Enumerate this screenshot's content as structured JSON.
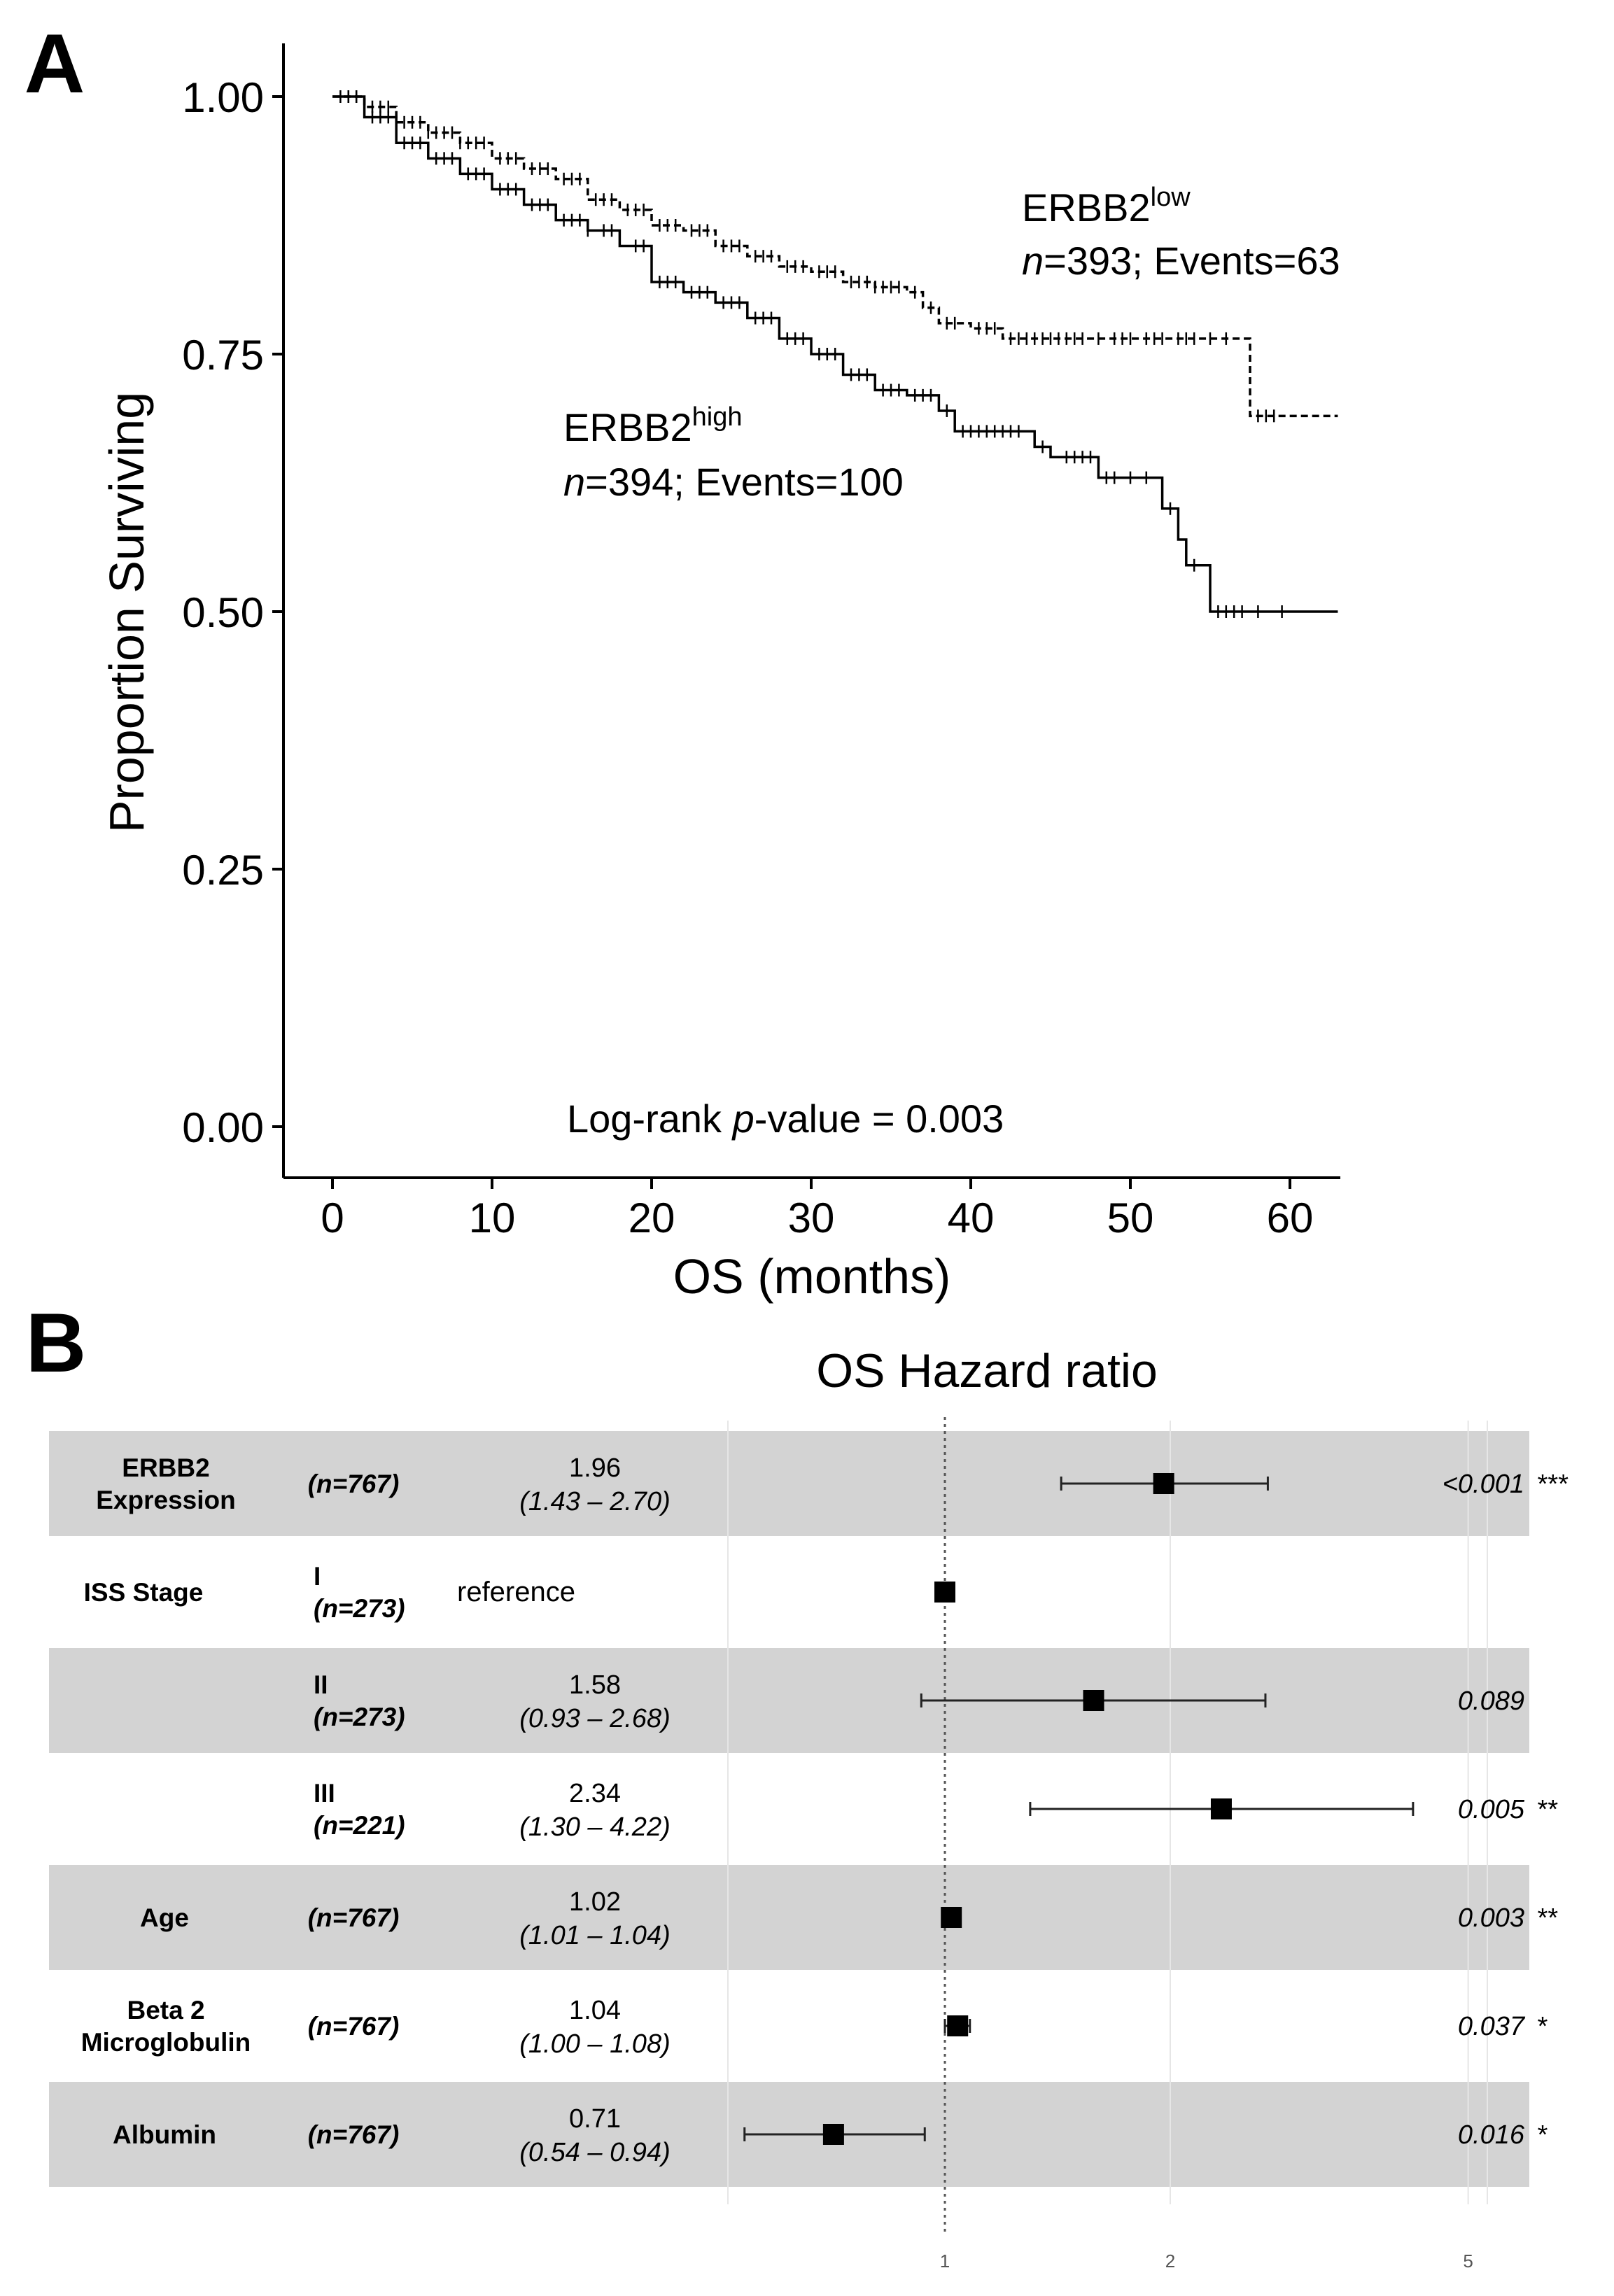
{
  "panel_a": {
    "label": "A",
    "chart_data": {
      "type": "line",
      "title": "",
      "xlabel": "OS (months)",
      "ylabel": "Proportion Surviving",
      "xlim": [
        -2,
        63
      ],
      "ylim": [
        -0.05,
        1.05
      ],
      "x_ticks": [
        0,
        10,
        20,
        30,
        40,
        50,
        60
      ],
      "y_ticks": [
        0.0,
        0.25,
        0.5,
        0.75,
        1.0
      ],
      "y_tick_labels": [
        "0.00",
        "0.25",
        "0.50",
        "0.75",
        "1.00"
      ],
      "grid": false,
      "series": [
        {
          "name": "ERBB2high",
          "line_style": "solid",
          "annotation": {
            "gene": "ERBB2",
            "sup": "high",
            "n_italic": "n",
            "rest": "=394; Events=100"
          },
          "steps": [
            [
              0,
              1.0
            ],
            [
              2,
              0.98
            ],
            [
              4,
              0.955
            ],
            [
              6,
              0.94
            ],
            [
              8,
              0.925
            ],
            [
              10,
              0.91
            ],
            [
              12,
              0.895
            ],
            [
              14,
              0.88
            ],
            [
              16,
              0.87
            ],
            [
              18,
              0.855
            ],
            [
              20,
              0.82
            ],
            [
              22,
              0.81
            ],
            [
              24,
              0.8
            ],
            [
              26,
              0.785
            ],
            [
              28,
              0.765
            ],
            [
              30,
              0.75
            ],
            [
              32,
              0.73
            ],
            [
              34,
              0.715
            ],
            [
              36,
              0.71
            ],
            [
              38,
              0.695
            ],
            [
              39,
              0.675
            ],
            [
              44,
              0.66
            ],
            [
              45,
              0.65
            ],
            [
              48,
              0.63
            ],
            [
              52,
              0.6
            ],
            [
              53,
              0.57
            ],
            [
              53.5,
              0.545
            ],
            [
              55,
              0.5
            ],
            [
              63,
              0.5
            ]
          ],
          "censor_x": [
            1,
            1.5,
            2.5,
            3,
            3.5,
            4.5,
            5,
            5.5,
            6.5,
            7,
            7.5,
            8.5,
            9,
            9.5,
            10.5,
            11,
            11.5,
            12.5,
            13,
            13.5,
            14.5,
            15,
            15.5,
            16,
            17,
            17.5,
            19,
            19.5,
            20.5,
            21,
            21.5,
            22.5,
            23,
            23.5,
            24.5,
            25,
            25.5,
            26.5,
            27,
            27.5,
            28.5,
            29,
            29.5,
            30.5,
            31,
            31.5,
            32.5,
            33,
            33.5,
            34.5,
            35,
            35.5,
            36.5,
            37,
            37.5,
            38.5,
            39.5,
            40,
            40.5,
            41,
            41.5,
            42,
            42.5,
            43,
            44.5,
            46,
            46.5,
            47,
            47.5,
            48.5,
            49,
            50,
            51,
            52.5,
            54,
            55.5,
            56,
            56.5,
            57,
            58,
            59.5
          ]
        },
        {
          "name": "ERBB2low",
          "line_style": "dashed",
          "annotation": {
            "gene": "ERBB2",
            "sup": "low",
            "n_italic": "n",
            "rest": "=393; Events=63"
          },
          "steps": [
            [
              0,
              1.0
            ],
            [
              2,
              0.99
            ],
            [
              4,
              0.975
            ],
            [
              6,
              0.965
            ],
            [
              8,
              0.955
            ],
            [
              10,
              0.94
            ],
            [
              12,
              0.93
            ],
            [
              14,
              0.92
            ],
            [
              16,
              0.9
            ],
            [
              18,
              0.89
            ],
            [
              20,
              0.875
            ],
            [
              22,
              0.87
            ],
            [
              24,
              0.855
            ],
            [
              26,
              0.845
            ],
            [
              28,
              0.835
            ],
            [
              30,
              0.83
            ],
            [
              32,
              0.82
            ],
            [
              34,
              0.815
            ],
            [
              36,
              0.81
            ],
            [
              37,
              0.795
            ],
            [
              38,
              0.78
            ],
            [
              40,
              0.775
            ],
            [
              42,
              0.765
            ],
            [
              57.5,
              0.765
            ],
            [
              57.5,
              0.69
            ],
            [
              63,
              0.69
            ]
          ],
          "censor_x": [
            0.5,
            1,
            1.5,
            2,
            2.5,
            3,
            3.5,
            4,
            4.5,
            5,
            5.5,
            6,
            6.5,
            7,
            7.5,
            8,
            8.5,
            9,
            9.5,
            10.5,
            11,
            11.5,
            12.5,
            13,
            13.5,
            14.5,
            15,
            15.5,
            16.5,
            17,
            17.5,
            18.5,
            19,
            19.5,
            20.5,
            21,
            21.5,
            22.5,
            23,
            23.5,
            24.5,
            25,
            25.5,
            26.5,
            27,
            27.5,
            28.5,
            29,
            29.5,
            30.5,
            31,
            31.5,
            32.5,
            33,
            33.5,
            34,
            34.5,
            35,
            35.5,
            36.5,
            37.5,
            38.5,
            39,
            40.5,
            41,
            41.5,
            42.5,
            43,
            43.5,
            44,
            44.5,
            45,
            45.5,
            46,
            46.5,
            47,
            48,
            49,
            49.5,
            50,
            51,
            51.5,
            52,
            53,
            53.5,
            54,
            55,
            56,
            58,
            58.5,
            59
          ]
        }
      ],
      "annotation_text": {
        "logrank_prefix": "Log-rank ",
        "p_italic": "p",
        "logrank_suffix": "-value  = 0.003"
      }
    }
  },
  "panel_b": {
    "label": "B",
    "title": "OS Hazard ratio",
    "chart_data": {
      "type": "forest",
      "x_scale": "log",
      "reference_line": 1,
      "x_ticks": [
        1,
        2,
        5
      ],
      "x_tick_labels": [
        "1",
        "2",
        "5"
      ],
      "rows": [
        {
          "variable": [
            "ERBB2",
            "Expression"
          ],
          "level": "",
          "n": "(n=767)",
          "hr": "1.96",
          "ci": "(1.43 – 2.70)",
          "reference": "",
          "hr_value": 1.96,
          "ci_low": 1.43,
          "ci_high": 2.7,
          "p": "<0.001",
          "stars": "***",
          "shaded": true
        },
        {
          "variable": [
            "ISS Stage"
          ],
          "level": "I",
          "n": "(n=273)",
          "hr": "",
          "ci": "",
          "reference": "reference",
          "hr_value": 1.0,
          "ci_low": null,
          "ci_high": null,
          "p": "",
          "stars": "",
          "shaded": false
        },
        {
          "variable": [],
          "level": "II",
          "n": "(n=273)",
          "hr": "1.58",
          "ci": "(0.93 – 2.68)",
          "reference": "",
          "hr_value": 1.58,
          "ci_low": 0.93,
          "ci_high": 2.68,
          "p": "0.089",
          "stars": "",
          "shaded": true
        },
        {
          "variable": [],
          "level": "III",
          "n": "(n=221)",
          "hr": "2.34",
          "ci": "(1.30 – 4.22)",
          "reference": "",
          "hr_value": 2.34,
          "ci_low": 1.3,
          "ci_high": 4.22,
          "p": "0.005",
          "stars": "**",
          "shaded": false
        },
        {
          "variable": [
            "Age"
          ],
          "level": "",
          "n": "(n=767)",
          "hr": "1.02",
          "ci": "(1.01 – 1.04)",
          "reference": "",
          "hr_value": 1.02,
          "ci_low": 1.01,
          "ci_high": 1.04,
          "p": "0.003",
          "stars": "**",
          "shaded": true
        },
        {
          "variable": [
            "Beta 2",
            "Microglobulin"
          ],
          "level": "",
          "n": "(n=767)",
          "hr": "1.04",
          "ci": "(1.00 – 1.08)",
          "reference": "",
          "hr_value": 1.04,
          "ci_low": 1.0,
          "ci_high": 1.08,
          "p": "0.037",
          "stars": "*",
          "shaded": false
        },
        {
          "variable": [
            "Albumin"
          ],
          "level": "",
          "n": "(n=767)",
          "hr": "0.71",
          "ci": "(0.54 – 0.94)",
          "reference": "",
          "hr_value": 0.71,
          "ci_low": 0.54,
          "ci_high": 0.94,
          "p": "0.016",
          "stars": "*",
          "shaded": true
        }
      ]
    }
  }
}
